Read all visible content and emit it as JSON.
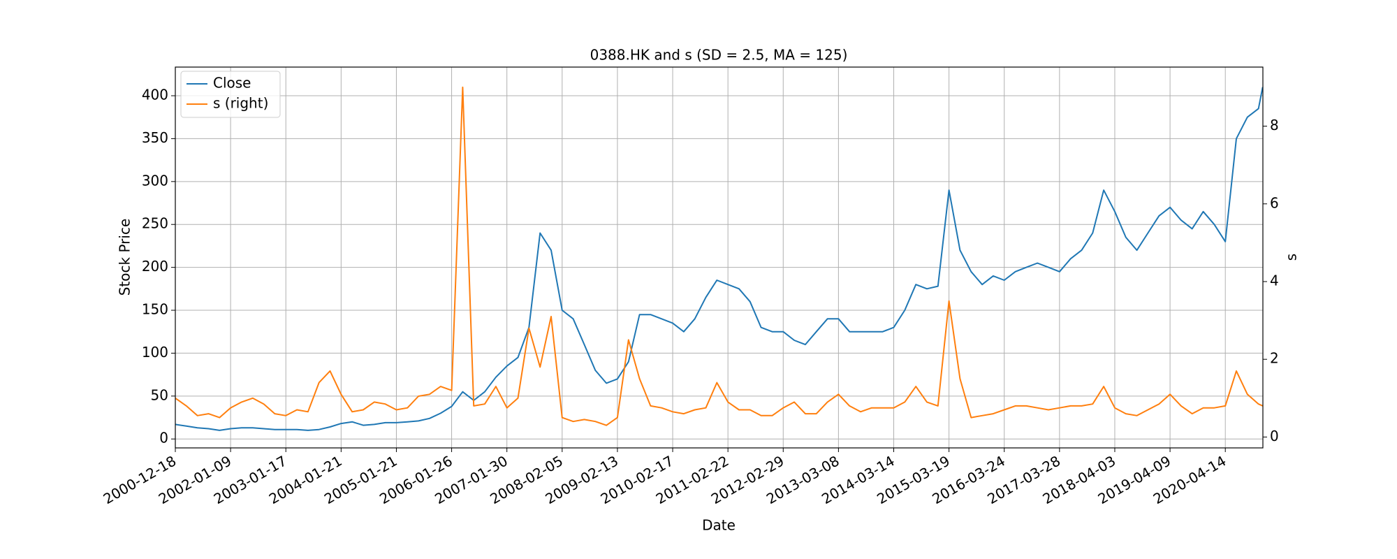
{
  "chart_data": {
    "type": "line",
    "title": "0388.HK and s (SD = 2.5, MA = 125)",
    "xlabel": "Date",
    "ylabel": "Stock Price",
    "y2label": "s",
    "x": [
      0,
      50,
      100,
      150,
      200,
      250,
      300,
      350,
      400,
      450,
      500,
      550,
      600,
      650,
      700,
      750,
      800,
      850,
      900,
      950,
      1000,
      1050,
      1100,
      1150,
      1200,
      1250,
      1300,
      1350,
      1400,
      1450,
      1500,
      1550,
      1600,
      1650,
      1700,
      1750,
      1800,
      1850,
      1900,
      1950,
      2000,
      2050,
      2100,
      2150,
      2200,
      2250,
      2300,
      2350,
      2400,
      2450,
      2500,
      2550,
      2600,
      2650,
      2700,
      2750,
      2800,
      2850,
      2900,
      2950,
      3000,
      3050,
      3100,
      3150,
      3200,
      3250,
      3300,
      3350,
      3400,
      3450,
      3500,
      3550,
      3600,
      3650,
      3700,
      3750,
      3800,
      3850,
      3900,
      3950,
      4000,
      4050,
      4100,
      4150,
      4200,
      4250,
      4300,
      4350,
      4400,
      4450,
      4500,
      4550,
      4600,
      4650,
      4700,
      4750,
      4800,
      4850,
      4900,
      4919
    ],
    "series": [
      {
        "name": "Close",
        "color": "#1f77b4",
        "axis": "y",
        "values": [
          17,
          15,
          13,
          12,
          10,
          12,
          13,
          13,
          12,
          11,
          11,
          11,
          10,
          11,
          14,
          18,
          20,
          16,
          17,
          19,
          19,
          20,
          21,
          24,
          30,
          38,
          55,
          45,
          55,
          72,
          85,
          95,
          130,
          240,
          220,
          150,
          140,
          110,
          80,
          65,
          70,
          90,
          145,
          145,
          140,
          135,
          125,
          140,
          165,
          185,
          180,
          175,
          160,
          130,
          125,
          125,
          115,
          110,
          125,
          140,
          140,
          125,
          125,
          125,
          125,
          130,
          150,
          180,
          175,
          178,
          290,
          220,
          195,
          180,
          190,
          185,
          195,
          200,
          205,
          200,
          195,
          210,
          220,
          240,
          290,
          265,
          235,
          220,
          240,
          260,
          270,
          255,
          245,
          265,
          250,
          230,
          350,
          375,
          385,
          410
        ]
      },
      {
        "name": "s (right)",
        "color": "#ff7f0e",
        "axis": "y2",
        "values": [
          1.0,
          0.8,
          0.55,
          0.6,
          0.5,
          0.75,
          0.9,
          1.0,
          0.85,
          0.6,
          0.55,
          0.7,
          0.65,
          1.4,
          1.7,
          1.1,
          0.65,
          0.7,
          0.9,
          0.85,
          0.7,
          0.75,
          1.05,
          1.1,
          1.3,
          1.2,
          9.0,
          0.8,
          0.85,
          1.3,
          0.75,
          1.0,
          2.8,
          1.8,
          3.1,
          0.5,
          0.4,
          0.45,
          0.4,
          0.3,
          0.5,
          2.5,
          1.5,
          0.8,
          0.75,
          0.65,
          0.6,
          0.7,
          0.75,
          1.4,
          0.9,
          0.7,
          0.7,
          0.55,
          0.55,
          0.75,
          0.9,
          0.6,
          0.6,
          0.9,
          1.1,
          0.8,
          0.65,
          0.75,
          0.75,
          0.75,
          0.9,
          1.3,
          0.9,
          0.8,
          3.5,
          1.5,
          0.5,
          0.55,
          0.6,
          0.7,
          0.8,
          0.8,
          0.75,
          0.7,
          0.75,
          0.8,
          0.8,
          0.85,
          1.3,
          0.75,
          0.6,
          0.55,
          0.7,
          0.85,
          1.1,
          0.8,
          0.6,
          0.75,
          0.75,
          0.8,
          1.7,
          1.1,
          0.85,
          0.8
        ]
      }
    ],
    "xlim": [
      0,
      4920
    ],
    "xticks": [
      {
        "value": 0,
        "label": "2000-12-18"
      },
      {
        "value": 250,
        "label": "2002-01-09"
      },
      {
        "value": 500,
        "label": "2003-01-17"
      },
      {
        "value": 750,
        "label": "2004-01-21"
      },
      {
        "value": 1000,
        "label": "2005-01-21"
      },
      {
        "value": 1250,
        "label": "2006-01-26"
      },
      {
        "value": 1500,
        "label": "2007-01-30"
      },
      {
        "value": 1750,
        "label": "2008-02-05"
      },
      {
        "value": 2000,
        "label": "2009-02-13"
      },
      {
        "value": 2250,
        "label": "2010-02-17"
      },
      {
        "value": 2500,
        "label": "2011-02-22"
      },
      {
        "value": 2750,
        "label": "2012-02-29"
      },
      {
        "value": 3000,
        "label": "2013-03-08"
      },
      {
        "value": 3250,
        "label": "2014-03-14"
      },
      {
        "value": 3500,
        "label": "2015-03-19"
      },
      {
        "value": 3750,
        "label": "2016-03-24"
      },
      {
        "value": 4000,
        "label": "2017-03-28"
      },
      {
        "value": 4250,
        "label": "2018-04-03"
      },
      {
        "value": 4500,
        "label": "2019-04-09"
      },
      {
        "value": 4750,
        "label": "2020-04-14"
      }
    ],
    "ylim": [
      -10.4,
      433.4
    ],
    "yticks": [
      0,
      50,
      100,
      150,
      200,
      250,
      300,
      350,
      400
    ],
    "y2lim": [
      -0.28,
      9.52
    ],
    "y2ticks": [
      0,
      2,
      4,
      6,
      8
    ],
    "grid": true,
    "legend": "upper left"
  }
}
